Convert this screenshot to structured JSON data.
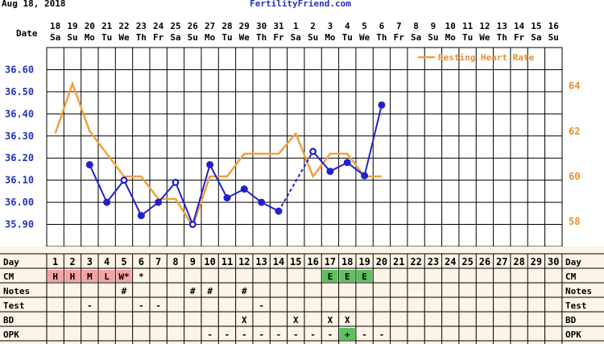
{
  "header": {
    "date_text": "Aug 18, 2018",
    "site": "FertilityFriend.com"
  },
  "row_labels": {
    "date": "Date",
    "day": "Day",
    "cm": "CM",
    "notes": "Notes",
    "test": "Test",
    "bd": "BD",
    "opk": "OPK"
  },
  "dates": [
    "18",
    "19",
    "20",
    "21",
    "22",
    "23",
    "24",
    "25",
    "26",
    "27",
    "28",
    "29",
    "30",
    "31",
    "1",
    "2",
    "3",
    "4",
    "5",
    "6",
    "7",
    "8",
    "9",
    "10",
    "11",
    "12",
    "13",
    "14",
    "15",
    "16"
  ],
  "weekdays": [
    "Sa",
    "Su",
    "Mo",
    "Tu",
    "We",
    "Th",
    "Fr",
    "Sa",
    "Su",
    "Mo",
    "Tu",
    "We",
    "Th",
    "Fr",
    "Sa",
    "Su",
    "Mo",
    "Tu",
    "We",
    "Th",
    "Fr",
    "Sa",
    "Su",
    "Mo",
    "Tu",
    "We",
    "Th",
    "Fr",
    "Sa",
    "Su"
  ],
  "cycle_days": [
    "1",
    "2",
    "3",
    "4",
    "5",
    "6",
    "7",
    "8",
    "9",
    "10",
    "11",
    "12",
    "13",
    "14",
    "15",
    "16",
    "17",
    "18",
    "19",
    "20",
    "21",
    "22",
    "23",
    "24",
    "25",
    "26",
    "27",
    "28",
    "29",
    "30"
  ],
  "colors": {
    "temp_line": "#2222cc",
    "rhr_line": "#f0a040",
    "left_axis": "#2233bb",
    "right_axis": "#e09030",
    "grid": "#000000",
    "grid_bg": "#ffffff",
    "panel_bg": "#fdf3e6",
    "cm_red": "#f7a3a3",
    "cm_green": "#5cc25c",
    "opk_green": "#5cc25c"
  },
  "chart_data": {
    "type": "line",
    "x": [
      1,
      2,
      3,
      4,
      5,
      6,
      7,
      8,
      9,
      10,
      11,
      12,
      13,
      14,
      15,
      16,
      17,
      18,
      19,
      20,
      21,
      22,
      23,
      24,
      25,
      26,
      27,
      28,
      29,
      30
    ],
    "temp_axis": {
      "ylim": [
        35.8,
        36.7
      ],
      "ticks": [
        "35.90",
        "36.00",
        "36.10",
        "36.20",
        "36.30",
        "36.40",
        "36.50",
        "36.60"
      ],
      "tick_values": [
        35.9,
        36.0,
        36.1,
        36.2,
        36.3,
        36.4,
        36.5,
        36.6
      ]
    },
    "rhr_axis": {
      "ylim": [
        56.9,
        65.7
      ],
      "ticks": [
        "58",
        "60",
        "62",
        "64"
      ],
      "tick_values": [
        58,
        60,
        62,
        64
      ]
    },
    "series": [
      {
        "name": "Temperature",
        "axis": "temp",
        "values": [
          null,
          null,
          36.17,
          36.0,
          36.1,
          35.94,
          36.0,
          36.09,
          35.9,
          36.17,
          36.02,
          36.06,
          36.0,
          35.96,
          null,
          36.23,
          36.14,
          36.18,
          36.12,
          36.44,
          null,
          null,
          null,
          null,
          null,
          null,
          null,
          null,
          null,
          null
        ],
        "open_markers": [
          5,
          8,
          9,
          16
        ],
        "dashed_segments": [
          [
            14,
            16
          ]
        ]
      },
      {
        "name": "Resting Heart Rate",
        "axis": "rhr",
        "values": [
          61.9,
          64.1,
          62.0,
          61.0,
          60.0,
          60.0,
          59.0,
          59.0,
          57.8,
          60.0,
          60.0,
          61.0,
          61.0,
          61.0,
          61.9,
          60.0,
          61.0,
          61.0,
          60.0,
          60.0,
          null,
          null,
          null,
          null,
          null,
          null,
          null,
          null,
          null,
          null
        ]
      }
    ],
    "legend": {
      "text": "Resting Heart Rate",
      "placement": "top-right"
    }
  },
  "panel": {
    "cm": [
      "H",
      "H",
      "M",
      "L",
      "W*",
      "*",
      "",
      "",
      "",
      "",
      "",
      "",
      "",
      "",
      "",
      "",
      "E",
      "E",
      "E",
      "",
      "",
      "",
      "",
      "",
      "",
      "",
      "",
      "",
      "",
      ""
    ],
    "notes": [
      "",
      "",
      "",
      "",
      "#",
      "",
      "",
      "",
      "#",
      "#",
      "",
      "#",
      "",
      "",
      "",
      "",
      "",
      "",
      "",
      "",
      "",
      "",
      "",
      "",
      "",
      "",
      "",
      "",
      "",
      ""
    ],
    "test": [
      "",
      "",
      "-",
      "",
      "",
      "-",
      "-",
      "",
      "",
      "",
      "",
      "",
      "-",
      "",
      "",
      "",
      "",
      "",
      "",
      "",
      "",
      "",
      "",
      "",
      "",
      "",
      "",
      "",
      "",
      ""
    ],
    "bd": [
      "",
      "",
      "",
      "",
      "",
      "",
      "",
      "",
      "",
      "",
      "",
      "X",
      "",
      "",
      "X",
      "",
      "X",
      "X",
      "",
      "",
      "",
      "",
      "",
      "",
      "",
      "",
      "",
      "",
      "",
      ""
    ],
    "opk": [
      "",
      "",
      "",
      "",
      "",
      "",
      "",
      "",
      "",
      "-",
      "-",
      "-",
      "-",
      "-",
      "-",
      "-",
      "-",
      "+",
      "-",
      "-",
      "",
      "",
      "",
      "",
      "",
      "",
      "",
      "",
      "",
      ""
    ]
  }
}
